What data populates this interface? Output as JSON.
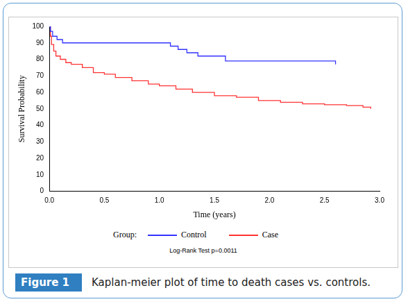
{
  "chart_data": {
    "type": "line",
    "x_label": "Time (years)",
    "y_label": "Survival Probability",
    "legend_title": "Group:",
    "legend": "bottom",
    "annotations": [
      "Log-Rank Test p=0.0011"
    ],
    "caption": {
      "label": "Figure 1",
      "text": "Kaplan-meier plot of time to death cases vs. controls."
    },
    "line_style": "steps",
    "grid": false,
    "xlim": [
      0,
      3
    ],
    "xticks": [
      {
        "value": 0,
        "label": "0.0"
      },
      {
        "value": 0.5,
        "label": "0.5"
      },
      {
        "value": 1,
        "label": "1.0"
      },
      {
        "value": 1.5,
        "label": "1.5"
      },
      {
        "value": 2,
        "label": "2.0"
      },
      {
        "value": 2.5,
        "label": "2.5"
      },
      {
        "value": 3,
        "label": "3.0"
      }
    ],
    "ylim": [
      0,
      100
    ],
    "yticks": [
      0,
      10,
      20,
      30,
      40,
      50,
      60,
      70,
      80,
      90,
      100
    ],
    "series": [
      {
        "name": "Control",
        "color": "#3333ff",
        "x": [
          0,
          0.01,
          0.03,
          0.07,
          0.12,
          1.1,
          1.17,
          1.25,
          1.35,
          1.6,
          2.6,
          2.6
        ],
        "values": [
          100,
          97,
          94,
          92,
          90,
          88,
          86,
          84,
          82,
          79,
          79,
          77
        ]
      },
      {
        "name": "Case",
        "color": "#ff3333",
        "x": [
          0,
          0.01,
          0.02,
          0.04,
          0.06,
          0.1,
          0.15,
          0.2,
          0.3,
          0.4,
          0.5,
          0.6,
          0.75,
          0.9,
          1.0,
          1.15,
          1.3,
          1.5,
          1.7,
          1.9,
          2.1,
          2.3,
          2.5,
          2.7,
          2.85,
          2.92
        ],
        "values": [
          100,
          94,
          89,
          85,
          82,
          80,
          78,
          77,
          75,
          72,
          71,
          69,
          67,
          65,
          64,
          62,
          60,
          58,
          57,
          55,
          54,
          53,
          52.5,
          52,
          51,
          50
        ]
      }
    ]
  }
}
